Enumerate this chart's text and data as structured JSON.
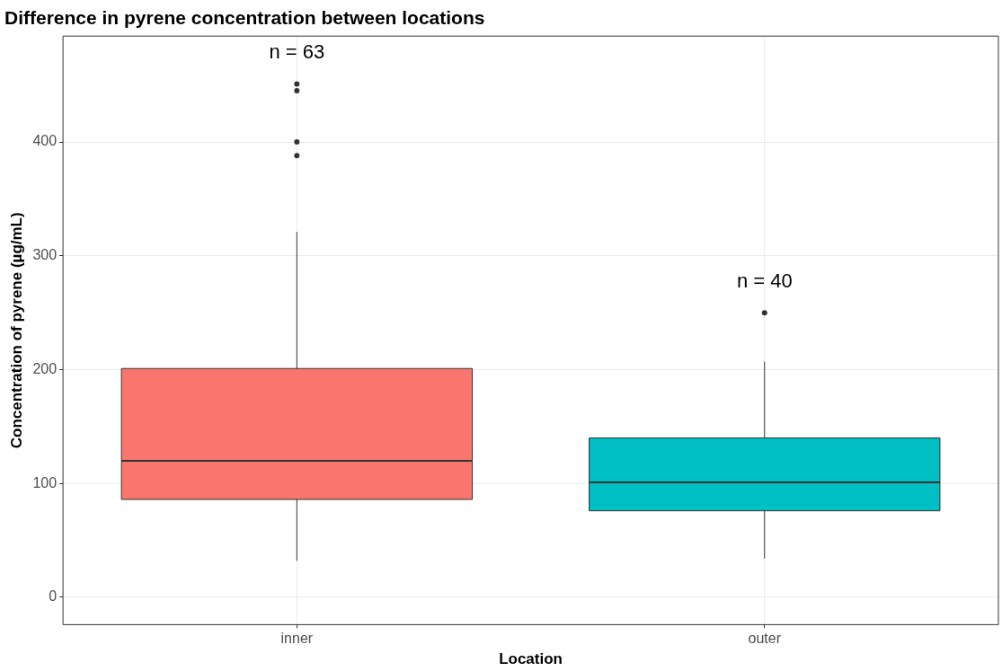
{
  "chart_data": {
    "type": "box",
    "title": "Difference in pyrene concentration between locations",
    "xlabel": "Location",
    "ylabel": "Concentration of pyrene (µg/mL)",
    "categories": [
      "inner",
      "outer"
    ],
    "boxes": [
      {
        "low": 32,
        "q1": 86,
        "median": 120,
        "q3": 201,
        "high": 321,
        "outliers": [
          451,
          445,
          400,
          388
        ]
      },
      {
        "low": 34,
        "q1": 76,
        "median": 101,
        "q3": 140,
        "high": 207,
        "outliers": [
          250
        ]
      }
    ],
    "colors": [
      "#f8766d",
      "#00bfc4"
    ],
    "ylim": [
      -24,
      493
    ],
    "yticks": [
      0,
      100,
      200,
      300,
      400
    ],
    "grid": true,
    "annotations": [
      "n = 63",
      "n = 40"
    ]
  }
}
